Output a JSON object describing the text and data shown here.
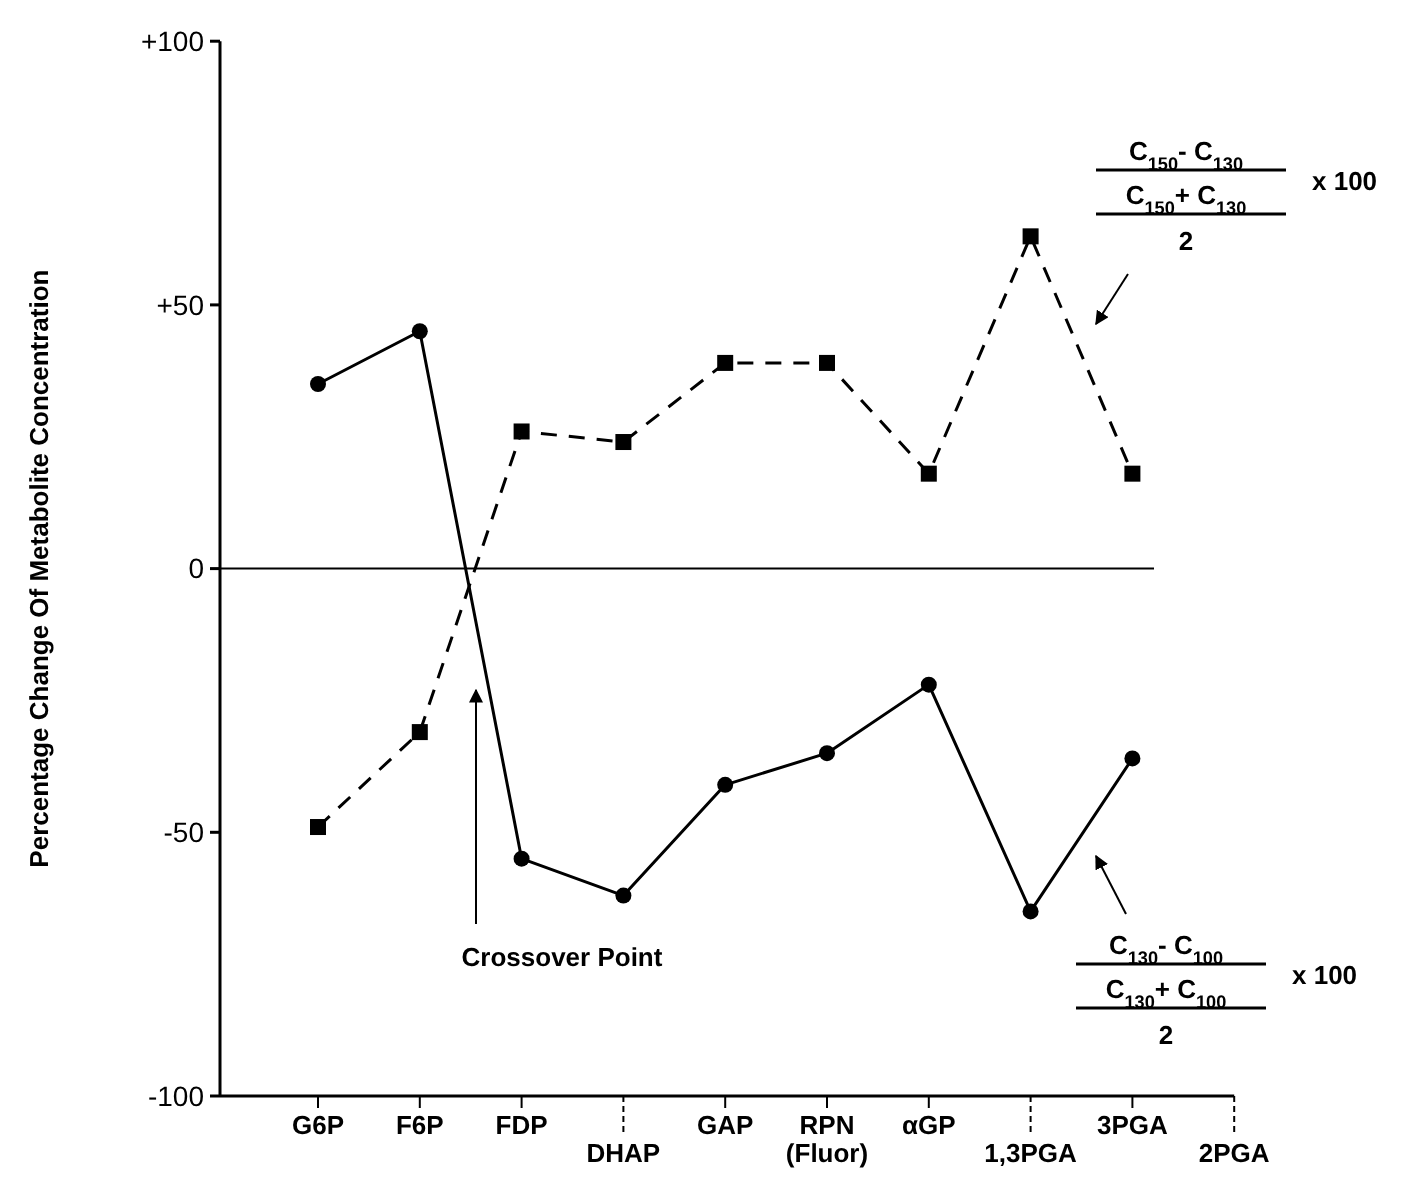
{
  "chart_data": {
    "type": "line",
    "ylabel": "Percentage Change Of Metabolite Concentration",
    "categories": [
      "G6P",
      "F6P",
      "FDP",
      "DHAP",
      "GAP",
      "RPN (Fluor)",
      "αGP",
      "1,3PGA",
      "3PGA",
      "2PGA"
    ],
    "series": [
      {
        "color": "#000000",
        "marker": "circle",
        "line_style": "solid",
        "values": [
          35,
          45,
          -55,
          -62,
          -41,
          -35,
          -22,
          -65,
          -36,
          null
        ]
      },
      {
        "color": "#000000",
        "marker": "square",
        "line_style": "dashed",
        "values": [
          -49,
          -31,
          26,
          24,
          39,
          39,
          18,
          63,
          18,
          null
        ]
      }
    ],
    "ylim": [
      -100,
      100
    ],
    "yticks": [
      {
        "value": 100,
        "label": "+100"
      },
      {
        "value": 50,
        "label": "+50"
      },
      0,
      -50,
      -100
    ],
    "ref_lines": [
      {
        "axis": "y",
        "value": 0,
        "color": "#000000"
      }
    ],
    "annotations": [
      "Crossover Point",
      "C$_{150}$- C$_{130}$",
      "C$_{150}$+ C$_{130}$",
      "2",
      "x 100",
      "C$_{130}$- C$_{100}$",
      "C$_{130}$+ C$_{100}$",
      "2",
      "x 100"
    ]
  }
}
